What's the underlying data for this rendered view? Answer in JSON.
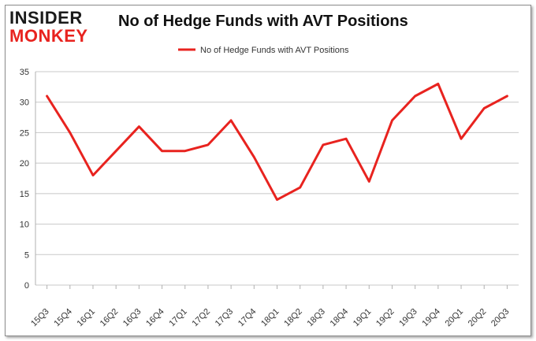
{
  "logo": {
    "top": "INSIDER",
    "bottom": "MONKEY"
  },
  "colors": {
    "line": "#e8231f",
    "grid": "#c8c8c8",
    "logo_red": "#e8231f"
  },
  "chart_data": {
    "type": "line",
    "title": "No of Hedge Funds with AVT Positions",
    "xlabel": "",
    "ylabel": "",
    "ylim": [
      0,
      35
    ],
    "yticks": [
      0,
      5,
      10,
      15,
      20,
      25,
      30,
      35
    ],
    "grid": true,
    "legend_position": "top-center",
    "categories": [
      "15Q3",
      "15Q4",
      "16Q1",
      "16Q2",
      "16Q3",
      "16Q4",
      "17Q1",
      "17Q2",
      "17Q3",
      "17Q4",
      "18Q1",
      "18Q2",
      "18Q3",
      "18Q4",
      "19Q1",
      "19Q2",
      "19Q3",
      "19Q4",
      "20Q1",
      "20Q2",
      "20Q3"
    ],
    "series": [
      {
        "name": "No of Hedge Funds with AVT Positions",
        "values": [
          31,
          25,
          18,
          22,
          26,
          22,
          22,
          23,
          27,
          21,
          14,
          16,
          23,
          24,
          17,
          27,
          31,
          33,
          24,
          29,
          31
        ]
      }
    ]
  }
}
